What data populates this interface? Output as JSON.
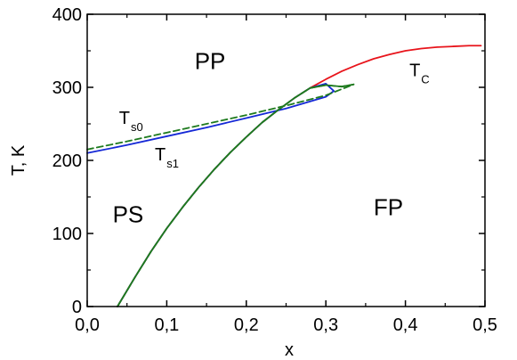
{
  "chart_data": {
    "type": "line",
    "title": "",
    "xlabel": "x",
    "ylabel": "T, K",
    "xlim": [
      0.0,
      0.5
    ],
    "ylim": [
      0,
      400
    ],
    "x_ticks": [
      "0,0",
      "0,1",
      "0,2",
      "0,3",
      "0,4",
      "0,5"
    ],
    "x_tick_values": [
      0.0,
      0.1,
      0.2,
      0.3,
      0.4,
      0.5
    ],
    "y_ticks": [
      "0",
      "100",
      "200",
      "300",
      "400"
    ],
    "y_tick_values": [
      0,
      100,
      200,
      300,
      400
    ],
    "grid": false,
    "series": [
      {
        "name": "T_C",
        "color": "#e8141b",
        "style": "solid",
        "x": [
          0.038,
          0.06,
          0.08,
          0.1,
          0.12,
          0.14,
          0.16,
          0.18,
          0.2,
          0.22,
          0.24,
          0.26,
          0.28,
          0.3,
          0.32,
          0.34,
          0.36,
          0.38,
          0.4,
          0.42,
          0.44,
          0.46,
          0.48,
          0.495
        ],
        "y": [
          0,
          40,
          75,
          107,
          136,
          163,
          188,
          211,
          232,
          252,
          269,
          285,
          299,
          311,
          322,
          331,
          339,
          345,
          350,
          353,
          355,
          356,
          357,
          357
        ]
      },
      {
        "name": "T_s1",
        "color": "#1528d6",
        "style": "solid",
        "x": [
          0.038,
          0.06,
          0.08,
          0.1,
          0.12,
          0.14,
          0.16,
          0.18,
          0.2,
          0.22,
          0.24,
          0.26,
          0.28,
          0.3,
          0.31,
          0.0,
          0.05,
          0.1,
          0.15,
          0.2,
          0.25,
          0.3,
          0.31
        ],
        "y": [
          0,
          40,
          75,
          107,
          136,
          163,
          188,
          211,
          232,
          252,
          269,
          285,
          299,
          305,
          295,
          210,
          221,
          233,
          245,
          258,
          271,
          287,
          295
        ]
      },
      {
        "name": "T_s0",
        "color": "#1e7a1e",
        "style": "dashed",
        "x": [
          0.0,
          0.05,
          0.1,
          0.15,
          0.2,
          0.25,
          0.3,
          0.335,
          0.038,
          0.06,
          0.08,
          0.1,
          0.12,
          0.14,
          0.16,
          0.18,
          0.2,
          0.22,
          0.24,
          0.26,
          0.28,
          0.3,
          0.32,
          0.335
        ],
        "y": [
          215,
          226,
          238,
          250,
          262,
          275,
          289,
          304,
          0,
          40,
          75,
          107,
          136,
          163,
          188,
          211,
          232,
          252,
          269,
          285,
          299,
          303,
          301,
          304
        ]
      }
    ],
    "curve_labels": [
      {
        "base": "T",
        "sub": "C",
        "x": 0.405,
        "y": 315
      },
      {
        "base": "T",
        "sub": "s0",
        "x": 0.04,
        "y": 250
      },
      {
        "base": "T",
        "sub": "s1",
        "x": 0.085,
        "y": 200
      }
    ],
    "region_labels": [
      {
        "text": "PP",
        "x": 0.135,
        "y": 325
      },
      {
        "text": "PS",
        "x": 0.032,
        "y": 115
      },
      {
        "text": "FP",
        "x": 0.36,
        "y": 125
      }
    ]
  },
  "colors": {
    "tc_curve": "#e8141b",
    "ts1_curve": "#1528d6",
    "ts0_curve": "#1e7a1e",
    "axes": "#000000"
  }
}
